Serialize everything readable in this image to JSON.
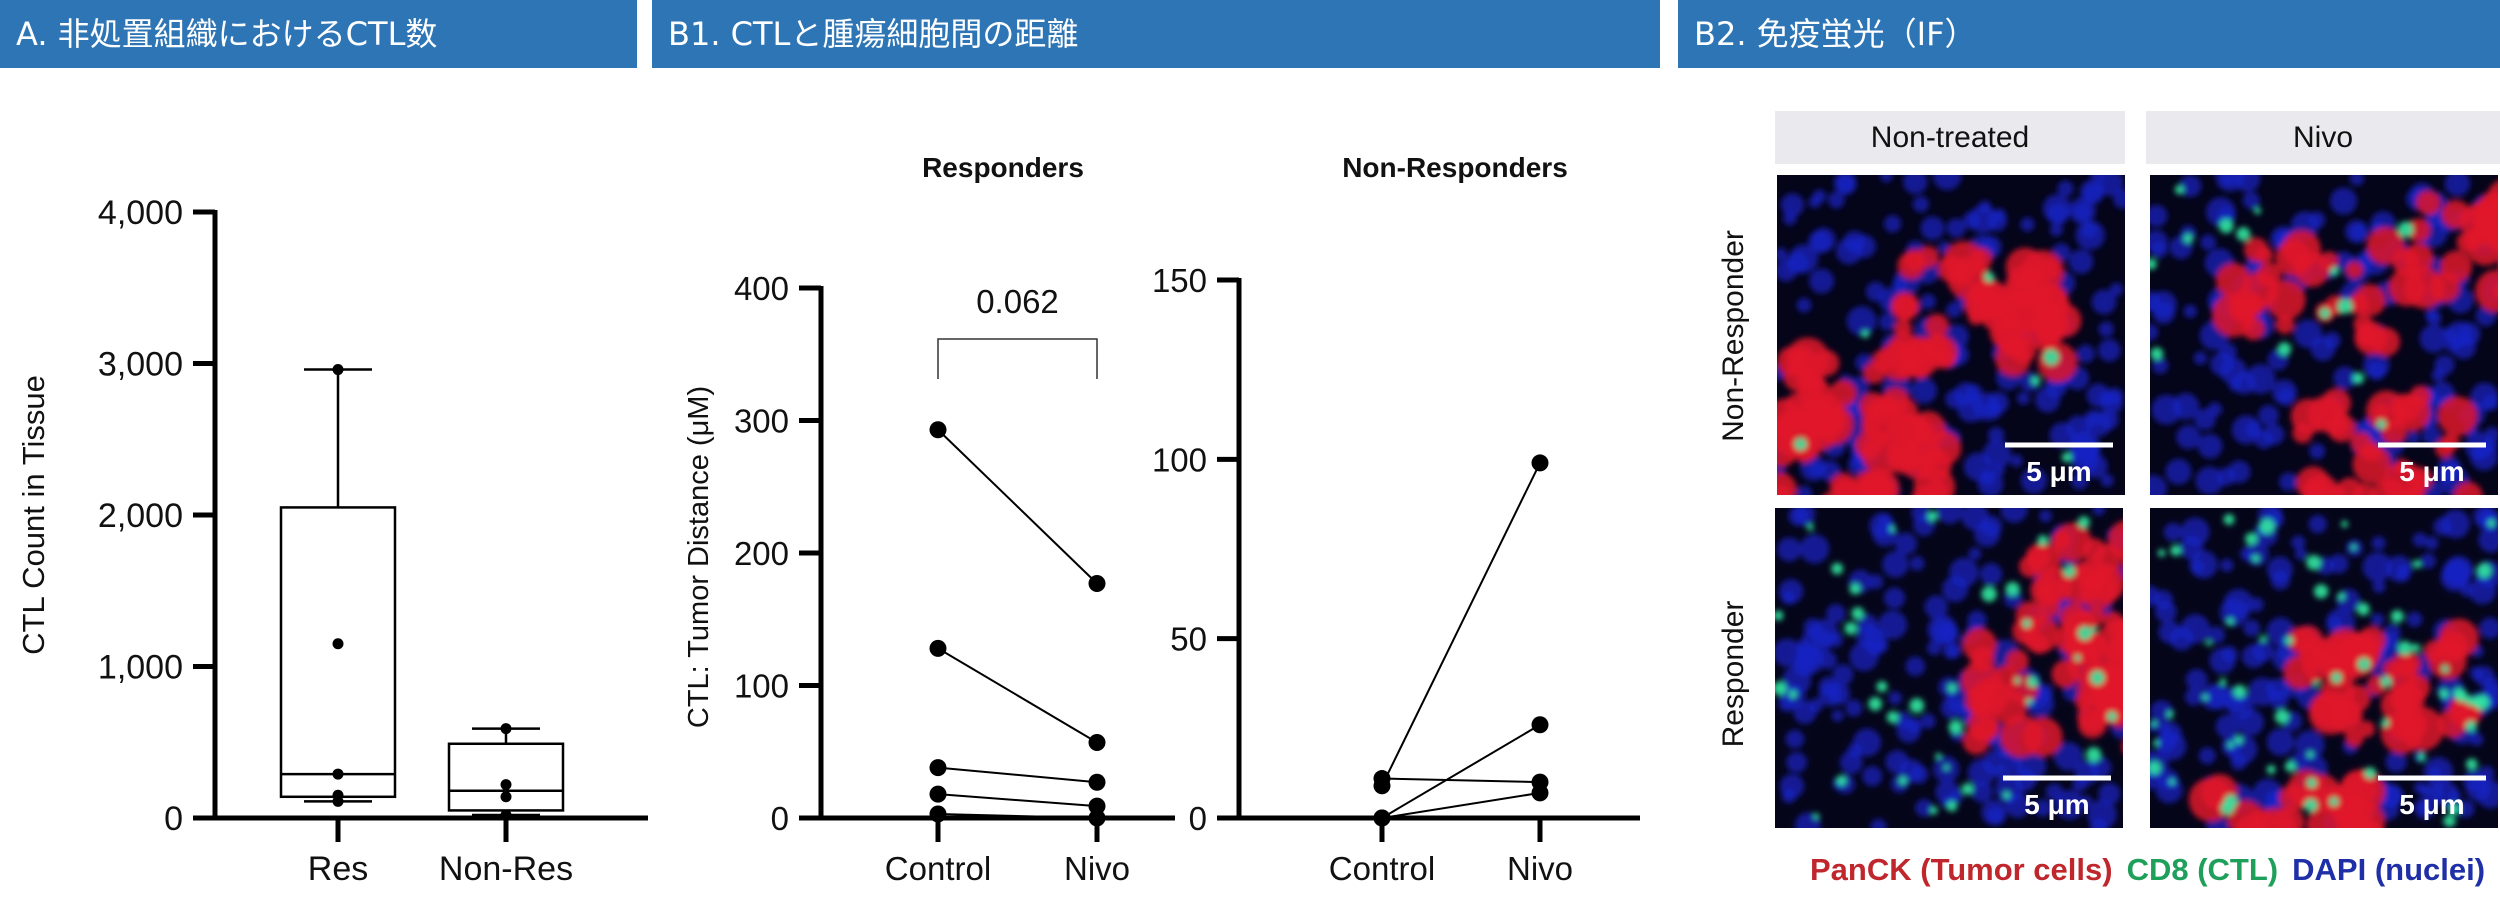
{
  "headers": {
    "a": "A. 非処置組織におけるCTL数",
    "b1": "B1. CTLと腫瘍細胞間の距離",
    "b2": "B2. 免疫蛍光（IF）"
  },
  "header_color": "#2E75B6",
  "chart_data": [
    {
      "type": "box",
      "title": "",
      "ylabel": "CTL Count in Tissue",
      "ylim": [
        0,
        4000
      ],
      "yticks": [
        "0",
        "1,000",
        "2,000",
        "3,000",
        "4,000"
      ],
      "ytick_values": [
        0,
        1000,
        2000,
        3000,
        4000
      ],
      "categories": [
        "Res",
        "Non-Res"
      ],
      "boxes": [
        {
          "name": "Res",
          "min": 110,
          "q1": 140,
          "median": 290,
          "q3": 2050,
          "max": 2960,
          "points": [
            2960,
            1150,
            290,
            150,
            110
          ]
        },
        {
          "name": "Non-Res",
          "min": 20,
          "q1": 50,
          "median": 180,
          "q3": 490,
          "max": 590,
          "points": [
            590,
            220,
            140,
            20
          ]
        }
      ]
    },
    {
      "type": "paired-line",
      "title": "Responders",
      "ylabel": "CTL: Tumor Distance (μM)",
      "ylim": [
        0,
        400
      ],
      "yticks": [
        "0",
        "100",
        "200",
        "300",
        "400"
      ],
      "ytick_values": [
        0,
        100,
        200,
        300,
        400
      ],
      "categories": [
        "Control",
        "Nivo"
      ],
      "pairs": [
        [
          293,
          177
        ],
        [
          128,
          57
        ],
        [
          38,
          27
        ],
        [
          18,
          9
        ],
        [
          3,
          0
        ]
      ],
      "annotation": "0.062"
    },
    {
      "type": "paired-line",
      "title": "Non-Responders",
      "ylabel": "",
      "ylim": [
        0,
        150
      ],
      "yticks": [
        "0",
        "50",
        "100",
        "150"
      ],
      "ytick_values": [
        0,
        50,
        100,
        150
      ],
      "categories": [
        "Control",
        "Nivo"
      ],
      "pairs": [
        [
          11,
          10
        ],
        [
          9,
          99
        ],
        [
          0,
          26
        ],
        [
          0,
          7
        ]
      ]
    }
  ],
  "if_panel": {
    "columns": [
      "Non-treated",
      "Nivo"
    ],
    "rows": [
      "Non-Responder",
      "Responder"
    ],
    "scale_bar": "5 μm",
    "legend": [
      {
        "label": "PanCK (Tumor cells)",
        "color": "#C0272D"
      },
      {
        "label": "CD8 (CTL)",
        "color": "#1EA05A"
      },
      {
        "label": "DAPI (nuclei)",
        "color": "#1F2FA8"
      }
    ]
  }
}
